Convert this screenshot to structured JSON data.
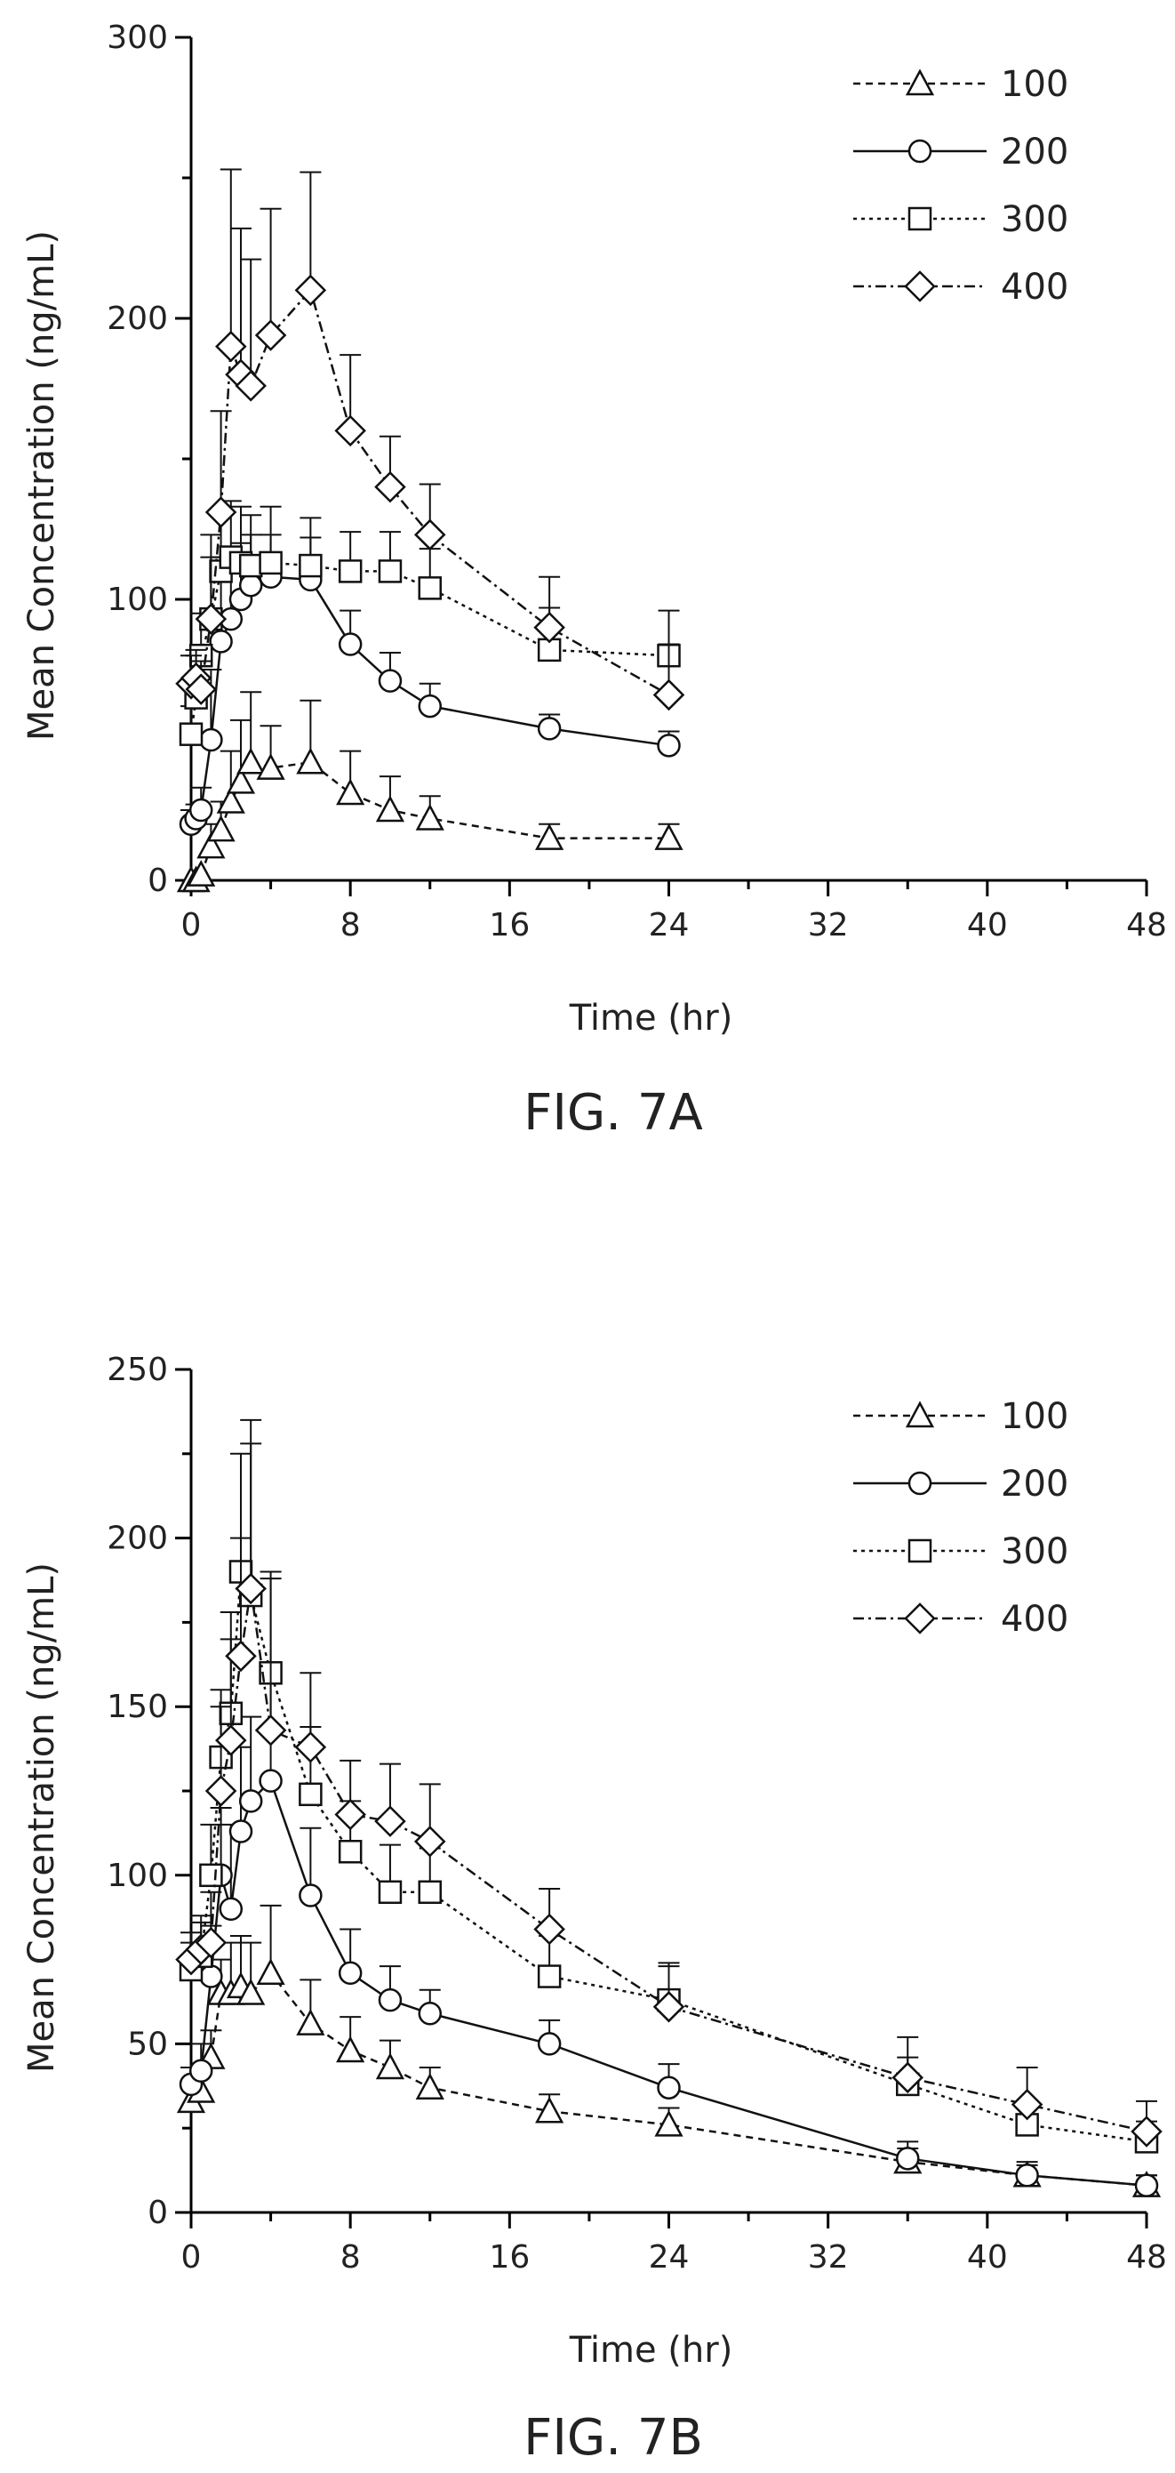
{
  "figures": [
    {
      "caption": "FIG. 7A"
    },
    {
      "caption": "FIG. 7B"
    }
  ],
  "chart_data": [
    {
      "type": "line",
      "title": "",
      "xlabel": "Time (hr)",
      "ylabel": "Mean Concentration (ng/mL)",
      "xlim": [
        0,
        48
      ],
      "ylim": [
        0,
        300
      ],
      "xticks": [
        0,
        8,
        16,
        24,
        32,
        40,
        48
      ],
      "yticks": [
        0,
        100,
        200,
        300
      ],
      "legend_position": "top-right",
      "error_bars": true,
      "series": [
        {
          "name": "100",
          "marker": "triangle",
          "dash": "8,6",
          "x": [
            0,
            0.25,
            0.5,
            1,
            1.5,
            2,
            2.5,
            3,
            4,
            6,
            8,
            10,
            12,
            18,
            24
          ],
          "y": [
            0,
            0,
            2,
            12,
            18,
            28,
            35,
            42,
            40,
            42,
            31,
            25,
            22,
            15,
            15
          ],
          "err": [
            0,
            0,
            0,
            8,
            10,
            18,
            22,
            25,
            15,
            22,
            15,
            12,
            8,
            5,
            5
          ]
        },
        {
          "name": "200",
          "marker": "circle",
          "dash": "",
          "x": [
            0,
            0.25,
            0.5,
            1,
            1.5,
            2,
            2.5,
            3,
            4,
            6,
            8,
            10,
            12,
            18,
            24
          ],
          "y": [
            20,
            22,
            25,
            50,
            85,
            93,
            100,
            105,
            108,
            107,
            84,
            71,
            62,
            54,
            48
          ],
          "err": [
            5,
            5,
            8,
            25,
            30,
            22,
            20,
            18,
            15,
            15,
            12,
            10,
            8,
            5,
            5
          ]
        },
        {
          "name": "300",
          "marker": "square",
          "dash": "4,5",
          "x": [
            0,
            0.25,
            0.5,
            1,
            1.5,
            2,
            2.5,
            3,
            4,
            6,
            8,
            10,
            12,
            18,
            24
          ],
          "y": [
            52,
            65,
            80,
            93,
            110,
            115,
            113,
            112,
            113,
            112,
            110,
            110,
            104,
            82,
            80
          ],
          "err": [
            10,
            15,
            15,
            22,
            22,
            20,
            20,
            18,
            20,
            17,
            14,
            14,
            14,
            15,
            16
          ]
        },
        {
          "name": "400",
          "marker": "diamond",
          "dash": "12,5,3,5",
          "x": [
            0,
            0.25,
            0.5,
            1,
            1.5,
            2,
            2.5,
            3,
            4,
            6,
            8,
            10,
            12,
            18,
            24
          ],
          "y": [
            70,
            72,
            68,
            93,
            131,
            190,
            180,
            176,
            194,
            210,
            160,
            140,
            123,
            90,
            66
          ],
          "err": [
            10,
            10,
            10,
            30,
            36,
            63,
            52,
            45,
            45,
            42,
            27,
            18,
            18,
            18,
            18
          ]
        }
      ]
    },
    {
      "type": "line",
      "title": "",
      "xlabel": "Time (hr)",
      "ylabel": "Mean Concentration (ng/mL)",
      "xlim": [
        0,
        48
      ],
      "ylim": [
        0,
        250
      ],
      "xticks": [
        0,
        8,
        16,
        24,
        32,
        40,
        48
      ],
      "yticks": [
        0,
        50,
        100,
        150,
        200,
        250
      ],
      "legend_position": "top-right",
      "error_bars": true,
      "series": [
        {
          "name": "100",
          "marker": "triangle",
          "dash": "8,6",
          "x": [
            0,
            0.5,
            1,
            1.5,
            2,
            2.5,
            3,
            4,
            6,
            8,
            10,
            12,
            18,
            24,
            36,
            42,
            48
          ],
          "y": [
            33,
            36,
            46,
            65,
            65,
            67,
            65,
            71,
            56,
            48,
            43,
            37,
            30,
            26,
            15,
            11,
            8
          ],
          "err": [
            5,
            5,
            8,
            10,
            15,
            15,
            15,
            20,
            13,
            10,
            8,
            6,
            5,
            5,
            4,
            3,
            3
          ]
        },
        {
          "name": "200",
          "marker": "circle",
          "dash": "",
          "x": [
            0,
            0.5,
            1,
            1.5,
            2,
            2.5,
            3,
            4,
            6,
            8,
            10,
            12,
            18,
            24,
            36,
            42,
            48
          ],
          "y": [
            38,
            42,
            70,
            100,
            90,
            113,
            122,
            128,
            94,
            71,
            63,
            59,
            50,
            37,
            16,
            11,
            8
          ],
          "err": [
            5,
            8,
            15,
            20,
            25,
            25,
            25,
            30,
            20,
            13,
            10,
            7,
            7,
            7,
            5,
            4,
            3
          ]
        },
        {
          "name": "300",
          "marker": "square",
          "dash": "4,5",
          "x": [
            0,
            0.5,
            1,
            1.5,
            2,
            2.5,
            3,
            4,
            6,
            8,
            10,
            12,
            18,
            24,
            36,
            42,
            48
          ],
          "y": [
            72,
            76,
            100,
            135,
            148,
            190,
            183,
            160,
            124,
            107,
            95,
            95,
            70,
            63,
            38,
            26,
            21
          ],
          "err": [
            8,
            10,
            15,
            20,
            30,
            35,
            45,
            30,
            20,
            15,
            14,
            13,
            12,
            10,
            8,
            7,
            6
          ]
        },
        {
          "name": "400",
          "marker": "diamond",
          "dash": "12,5,3,5",
          "x": [
            0,
            0.5,
            1,
            1.5,
            2,
            2.5,
            3,
            4,
            6,
            8,
            10,
            12,
            18,
            24,
            36,
            42,
            48
          ],
          "y": [
            75,
            78,
            80,
            125,
            140,
            165,
            185,
            143,
            138,
            118,
            116,
            110,
            84,
            61,
            40,
            32,
            24
          ],
          "err": [
            8,
            10,
            15,
            25,
            30,
            35,
            50,
            45,
            22,
            16,
            17,
            17,
            12,
            13,
            12,
            11,
            9
          ]
        }
      ]
    }
  ]
}
